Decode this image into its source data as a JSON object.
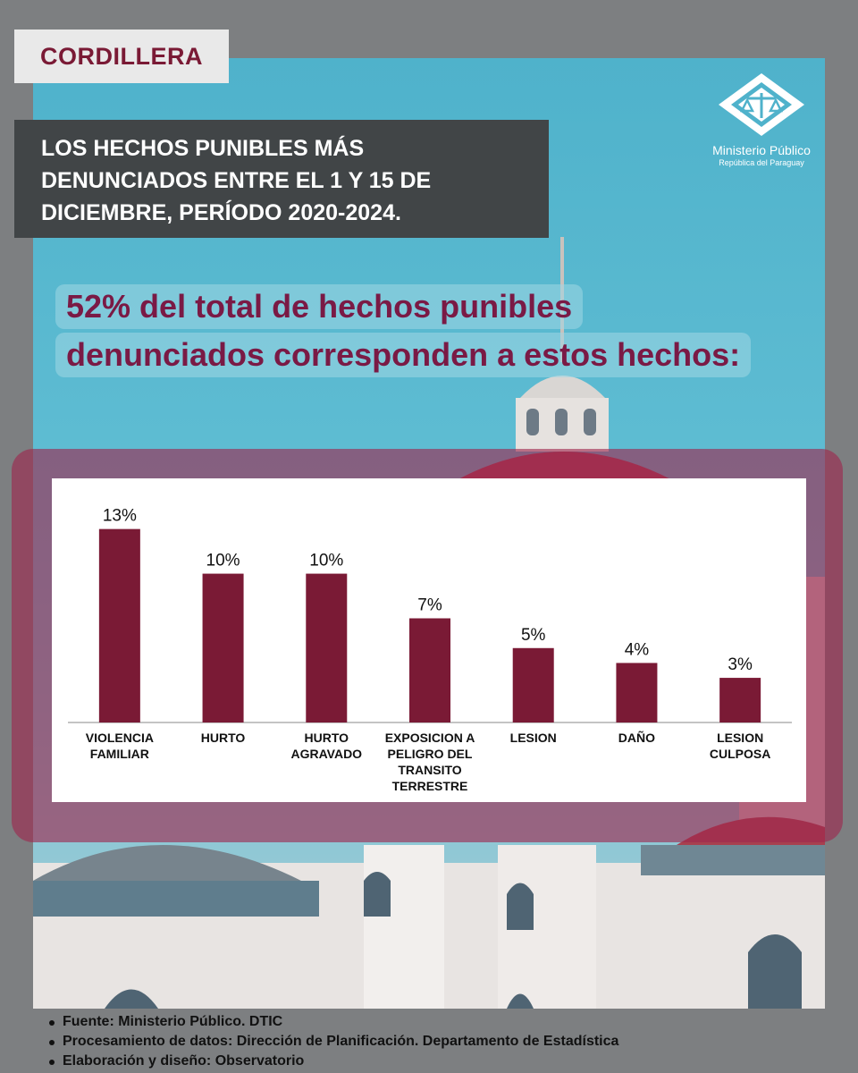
{
  "region": "CORDILLERA",
  "title_lines": [
    "LOS HECHOS PUNIBLES MÁS",
    "DENUNCIADOS ENTRE EL 1 Y 15 DE",
    "DICIEMBRE, PERÍODO 2020-2024."
  ],
  "logo": {
    "name": "Ministerio Público",
    "subtitle": "República del Paraguay"
  },
  "headline_lines": [
    "52% del total de hechos punibles",
    "denunciados corresponden a estos hechos:"
  ],
  "colors": {
    "bar": "#7a1a35",
    "accent": "#7a1a45",
    "frame": "#9e264e",
    "title_bg": "#414547"
  },
  "chart_data": {
    "type": "bar",
    "categories": [
      [
        "VIOLENCIA",
        "FAMILIAR"
      ],
      [
        "HURTO"
      ],
      [
        "HURTO",
        "AGRAVADO"
      ],
      [
        "EXPOSICION A",
        "PELIGRO DEL",
        "TRANSITO",
        "TERRESTRE"
      ],
      [
        "LESION"
      ],
      [
        "DAÑO"
      ],
      [
        "LESION",
        "CULPOSA"
      ]
    ],
    "values": [
      13,
      10,
      10,
      7,
      5,
      4,
      3
    ],
    "value_labels": [
      "13%",
      "10%",
      "10%",
      "7%",
      "5%",
      "4%",
      "3%"
    ],
    "unit": "%",
    "ylim": [
      0,
      14
    ],
    "grid": false,
    "legend": "none"
  },
  "footer": [
    "Fuente: Ministerio Público. DTIC",
    "Procesamiento de datos: Dirección de Planificación. Departamento de Estadística",
    "Elaboración y diseño: Observatorio"
  ]
}
